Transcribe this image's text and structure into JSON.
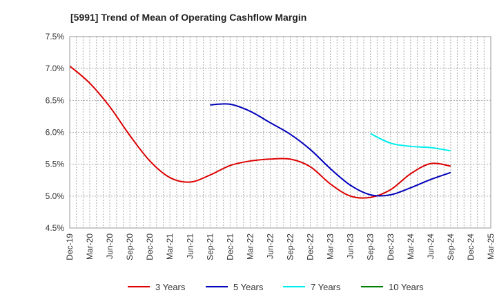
{
  "chart_data": {
    "type": "line",
    "title": "[5991]  Trend of Mean of Operating Cashflow Margin",
    "xlabel": "",
    "ylabel": "",
    "ylim": [
      4.5,
      7.5
    ],
    "y_ticks": [
      "7.5%",
      "7.0%",
      "6.5%",
      "6.0%",
      "5.5%",
      "5.0%",
      "4.5%"
    ],
    "y_tick_values": [
      7.5,
      7.0,
      6.5,
      6.0,
      5.5,
      5.0,
      4.5
    ],
    "x_ticks": [
      "Dec-19",
      "Mar-20",
      "Jun-20",
      "Sep-20",
      "Dec-20",
      "Mar-21",
      "Jun-21",
      "Sep-21",
      "Dec-21",
      "Mar-22",
      "Jun-22",
      "Sep-22",
      "Dec-22",
      "Mar-23",
      "Jun-23",
      "Sep-23",
      "Dec-23",
      "Mar-24",
      "Jun-24",
      "Sep-24",
      "Dec-24",
      "Mar-25"
    ],
    "grid": true,
    "legend_position": "bottom",
    "series": [
      {
        "name": "3 Years",
        "color": "#dd0000",
        "points": [
          [
            "Dec-19",
            7.04
          ],
          [
            "Mar-20",
            6.77
          ],
          [
            "Jun-20",
            6.4
          ],
          [
            "Sep-20",
            5.95
          ],
          [
            "Dec-20",
            5.55
          ],
          [
            "Mar-21",
            5.29
          ],
          [
            "Jun-21",
            5.22
          ],
          [
            "Sep-21",
            5.33
          ],
          [
            "Dec-21",
            5.48
          ],
          [
            "Mar-22",
            5.55
          ],
          [
            "Jun-22",
            5.58
          ],
          [
            "Sep-22",
            5.58
          ],
          [
            "Dec-22",
            5.46
          ],
          [
            "Mar-23",
            5.19
          ],
          [
            "Jun-23",
            5.0
          ],
          [
            "Sep-23",
            4.98
          ],
          [
            "Dec-23",
            5.1
          ],
          [
            "Mar-24",
            5.35
          ],
          [
            "Jun-24",
            5.51
          ],
          [
            "Sep-24",
            5.47
          ]
        ]
      },
      {
        "name": "5 Years",
        "color": "#0000bb",
        "points": [
          [
            "Sep-21",
            6.43
          ],
          [
            "Dec-21",
            6.44
          ],
          [
            "Mar-22",
            6.33
          ],
          [
            "Jun-22",
            6.15
          ],
          [
            "Sep-22",
            5.97
          ],
          [
            "Dec-22",
            5.73
          ],
          [
            "Mar-23",
            5.43
          ],
          [
            "Jun-23",
            5.17
          ],
          [
            "Sep-23",
            5.02
          ],
          [
            "Dec-23",
            5.02
          ],
          [
            "Mar-24",
            5.13
          ],
          [
            "Jun-24",
            5.26
          ],
          [
            "Sep-24",
            5.37
          ]
        ]
      },
      {
        "name": "7 Years",
        "color": "#00eeee",
        "points": [
          [
            "Sep-23",
            5.98
          ],
          [
            "Dec-23",
            5.83
          ],
          [
            "Mar-24",
            5.78
          ],
          [
            "Jun-24",
            5.76
          ],
          [
            "Sep-24",
            5.71
          ]
        ]
      },
      {
        "name": "10 Years",
        "color": "#008000",
        "points": []
      }
    ]
  }
}
